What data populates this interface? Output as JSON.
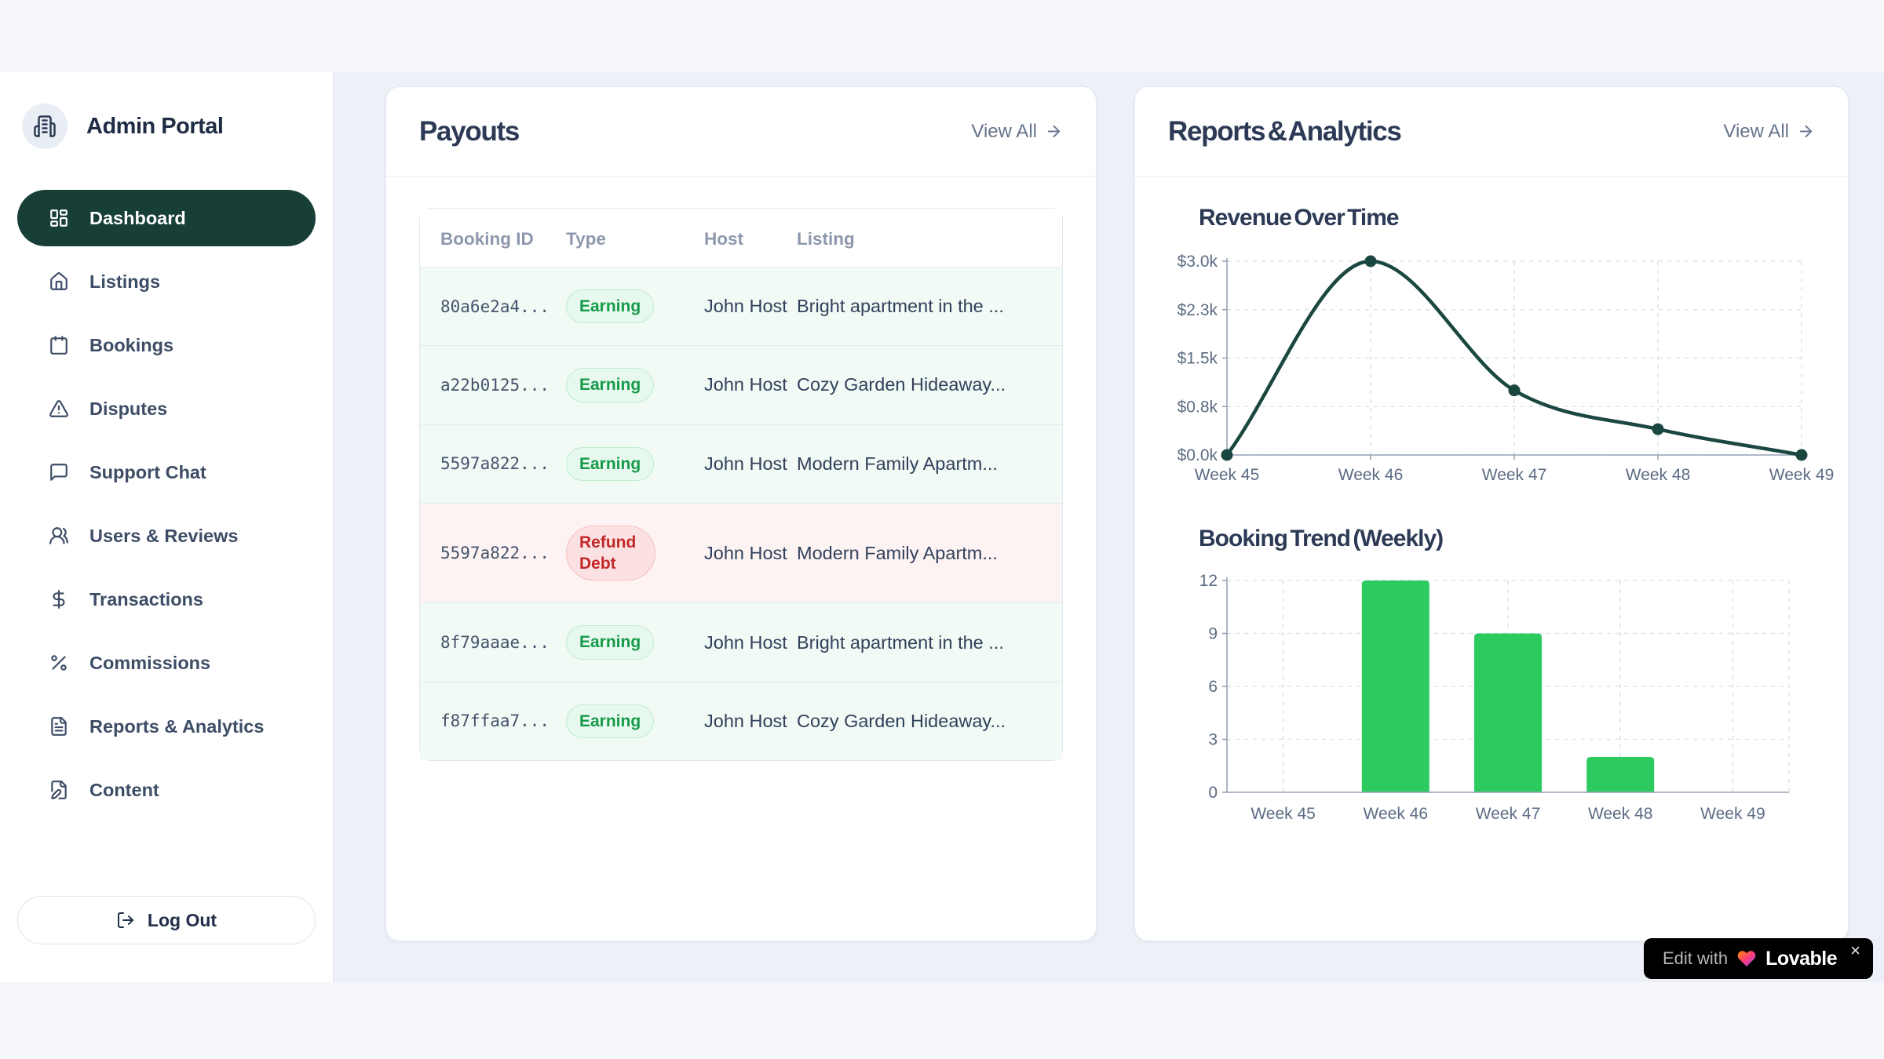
{
  "app": {
    "title": "Admin Portal"
  },
  "sidebar": {
    "items": [
      {
        "label": "Dashboard",
        "icon": "layout-dashboard",
        "active": true
      },
      {
        "label": "Listings",
        "icon": "home",
        "active": false
      },
      {
        "label": "Bookings",
        "icon": "calendar",
        "active": false
      },
      {
        "label": "Disputes",
        "icon": "alert-triangle",
        "active": false
      },
      {
        "label": "Support Chat",
        "icon": "message-square",
        "active": false
      },
      {
        "label": "Users & Reviews",
        "icon": "users",
        "active": false
      },
      {
        "label": "Transactions",
        "icon": "dollar-sign",
        "active": false
      },
      {
        "label": "Commissions",
        "icon": "percent",
        "active": false
      },
      {
        "label": "Reports & Analytics",
        "icon": "file-text",
        "active": false
      },
      {
        "label": "Content",
        "icon": "file-pen",
        "active": false
      }
    ],
    "logout_label": "Log Out"
  },
  "payouts": {
    "title": "Payouts",
    "view_all_label": "View All",
    "table": {
      "headers": [
        "Booking ID",
        "Type",
        "Host",
        "Listing"
      ],
      "rows": [
        {
          "booking_id": "80a6e2a4...",
          "type": "Earning",
          "host": "John Host",
          "listing": "Bright apartment in the ..."
        },
        {
          "booking_id": "a22b0125...",
          "type": "Earning",
          "host": "John Host",
          "listing": "Cozy Garden Hideaway..."
        },
        {
          "booking_id": "5597a822...",
          "type": "Earning",
          "host": "John Host",
          "listing": "Modern Family Apartm..."
        },
        {
          "booking_id": "5597a822...",
          "type": "Refund Debt",
          "host": "John Host",
          "listing": "Modern Family Apartm..."
        },
        {
          "booking_id": "8f79aaae...",
          "type": "Earning",
          "host": "John Host",
          "listing": "Bright apartment in the ..."
        },
        {
          "booking_id": "f87ffaa7...",
          "type": "Earning",
          "host": "John Host",
          "listing": "Cozy Garden Hideaway..."
        }
      ]
    }
  },
  "reports": {
    "title": "Reports & Analytics",
    "view_all_label": "View All"
  },
  "chart_data": [
    {
      "type": "line",
      "title": "Revenue Over Time",
      "x": [
        "Week 45",
        "Week 46",
        "Week 47",
        "Week 48",
        "Week 49"
      ],
      "values": [
        0,
        3000,
        1000,
        400,
        0
      ],
      "y_ticks": [
        0,
        750,
        1500,
        2250,
        3000
      ],
      "y_tick_labels": [
        "$0.0k",
        "$0.8k",
        "$1.5k",
        "$2.3k",
        "$3.0k"
      ],
      "ylim": [
        0,
        3000
      ],
      "xlabel": "",
      "ylabel": "",
      "grid": true,
      "legend": "none",
      "line_color": "#1a473f"
    },
    {
      "type": "bar",
      "title": "Booking Trend (Weekly)",
      "categories": [
        "Week 45",
        "Week 46",
        "Week 47",
        "Week 48",
        "Week 49"
      ],
      "values": [
        0,
        12,
        9,
        2,
        0
      ],
      "y_ticks": [
        0,
        3,
        6,
        9,
        12
      ],
      "y_tick_labels": [
        "0",
        "3",
        "6",
        "9",
        "12"
      ],
      "ylim": [
        0,
        12
      ],
      "xlabel": "",
      "ylabel": "",
      "grid": true,
      "legend": "none",
      "bar_color": "#2cca5f"
    }
  ],
  "lovable_badge": {
    "prefix": "Edit with",
    "brand": "Lovable",
    "close": "×"
  },
  "colors": {
    "accent_dark_teal": "#173f37",
    "bar_green": "#2cca5f",
    "line_teal": "#1a473f",
    "badge_earning_text": "#169a4a",
    "badge_refund_text": "#c32828",
    "page_bg": "#f4f6fa",
    "frame_bg": "#edf1f7"
  }
}
